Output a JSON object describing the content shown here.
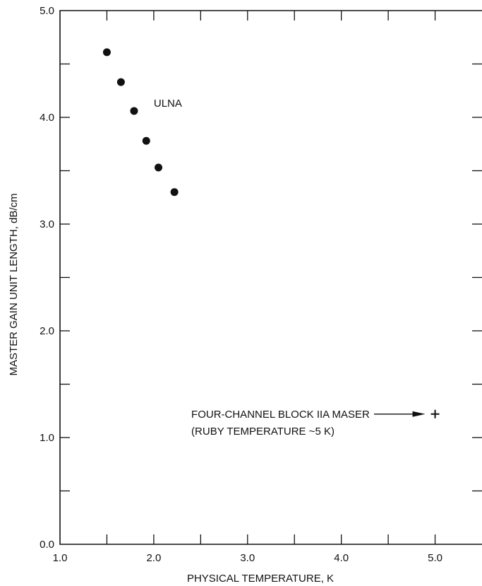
{
  "chart_data": {
    "type": "scatter",
    "title": "",
    "xlabel": "PHYSICAL TEMPERATURE, K",
    "ylabel": "MASTER GAIN UNIT LENGTH, dB/cm",
    "xlim": [
      1.0,
      5.5
    ],
    "ylim": [
      0.0,
      5.0
    ],
    "x_ticks": [
      1.0,
      2.0,
      3.0,
      4.0,
      5.0
    ],
    "x_tick_labels": [
      "1.0",
      "2.0",
      "3.0",
      "4.0",
      "5.0"
    ],
    "x_minor_ticks": [
      1.5,
      2.5,
      3.5,
      4.5
    ],
    "y_ticks": [
      0.0,
      1.0,
      2.0,
      3.0,
      4.0,
      5.0
    ],
    "y_tick_labels": [
      "0.0",
      "1.0",
      "2.0",
      "3.0",
      "4.0",
      "5.0"
    ],
    "y_minor_ticks": [
      0.5,
      1.5,
      2.5,
      3.5,
      4.5
    ],
    "grid": false,
    "series": [
      {
        "name": "ULNA",
        "marker": "filled-circle",
        "x": [
          1.5,
          1.65,
          1.79,
          1.92,
          2.05,
          2.22
        ],
        "y": [
          4.61,
          4.33,
          4.06,
          3.78,
          3.53,
          3.3
        ]
      },
      {
        "name": "FOUR-CHANNEL BLOCK IIA MASER",
        "marker": "plus",
        "x": [
          5.0
        ],
        "y": [
          1.22
        ]
      }
    ],
    "annotations": [
      {
        "text": "ULNA",
        "x": 2.0,
        "y": 4.1
      },
      {
        "text": "FOUR-CHANNEL BLOCK IIA MASER",
        "x": 2.4,
        "y": 1.22
      },
      {
        "text": "(RUBY TEMPERATURE ~5 K)",
        "x": 2.4,
        "y": 1.06
      }
    ]
  }
}
